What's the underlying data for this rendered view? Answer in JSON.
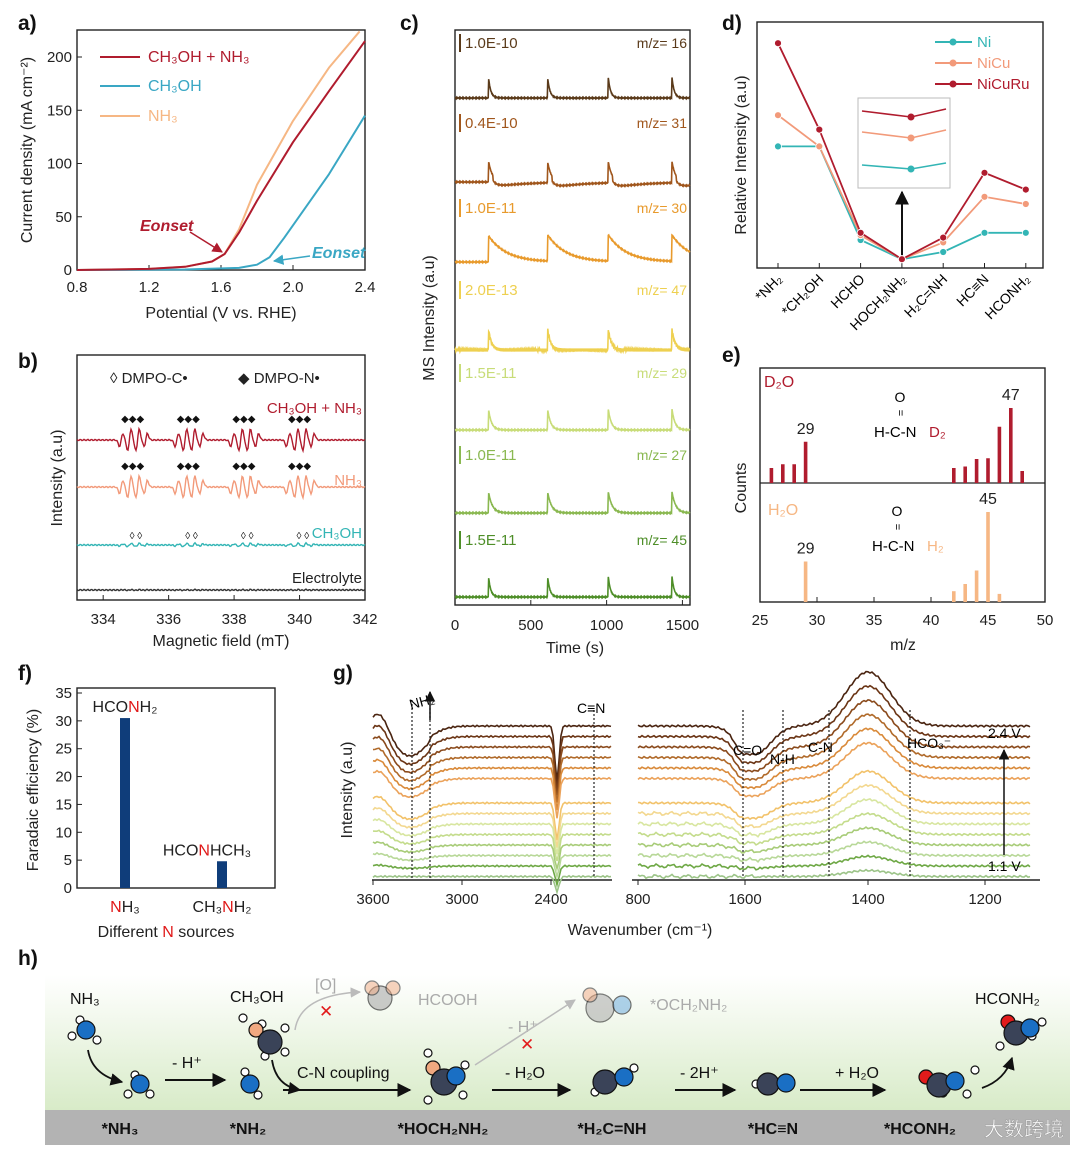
{
  "panel_labels": {
    "a": "a)",
    "b": "b)",
    "c": "c)",
    "d": "d)",
    "e": "e)",
    "f": "f)",
    "g": "g)",
    "h": "h)"
  },
  "colors": {
    "red": "#b01c2e",
    "blue": "#3aa7c4",
    "orange": "#f6b784",
    "salmon": "#f29a7a",
    "teal": "#33b5b5",
    "navy": "#0f3d7a",
    "green": "#5b9a2e"
  },
  "chart_data": [
    {
      "id": "a",
      "type": "line",
      "xlabel": "Potential (V vs. RHE)",
      "ylabel": "Current density (mA cm⁻²)",
      "xlim": [
        0.8,
        2.4
      ],
      "ylim": [
        0,
        225
      ],
      "xticks": [
        "0.8",
        "1.2",
        "1.6",
        "2.0",
        "2.4"
      ],
      "yticks": [
        "0",
        "50",
        "100",
        "150",
        "200"
      ],
      "legend_position": "top-left",
      "series": [
        {
          "name": "CH₃OH + NH₃",
          "color": "#b01c2e",
          "points": [
            [
              0.8,
              0
            ],
            [
              1.2,
              1
            ],
            [
              1.4,
              3
            ],
            [
              1.55,
              8
            ],
            [
              1.62,
              15
            ],
            [
              1.7,
              35
            ],
            [
              1.8,
              65
            ],
            [
              2.0,
              120
            ],
            [
              2.2,
              168
            ],
            [
              2.4,
              215
            ]
          ]
        },
        {
          "name": "CH₃OH",
          "color": "#3aa7c4",
          "points": [
            [
              0.8,
              0
            ],
            [
              1.4,
              0.5
            ],
            [
              1.7,
              2
            ],
            [
              1.8,
              5
            ],
            [
              1.87,
              12
            ],
            [
              1.95,
              30
            ],
            [
              2.0,
              42
            ],
            [
              2.2,
              90
            ],
            [
              2.4,
              145
            ]
          ]
        },
        {
          "name": "NH₃",
          "color": "#f6b784",
          "points": [
            [
              0.8,
              0
            ],
            [
              1.2,
              1
            ],
            [
              1.4,
              3
            ],
            [
              1.55,
              8
            ],
            [
              1.62,
              15
            ],
            [
              1.7,
              38
            ],
            [
              1.8,
              80
            ],
            [
              2.0,
              140
            ],
            [
              2.2,
              190
            ],
            [
              2.37,
              224
            ]
          ]
        }
      ],
      "annotations": [
        "Eonset",
        "Eonset"
      ]
    },
    {
      "id": "b",
      "type": "line",
      "xlabel": "Magnetic field (mT)",
      "ylabel": "Intensity (a.u)",
      "xlim": [
        333.2,
        342
      ],
      "xticks": [
        "334",
        "336",
        "338",
        "340",
        "342"
      ],
      "legend": [
        "◊ DMPO-C•",
        "◆ DMPO-N•"
      ],
      "peak_groups_mT": [
        334.8,
        336.5,
        338.2,
        339.9
      ],
      "series": [
        {
          "name": "CH₃OH + NH₃",
          "color": "#b01c2e",
          "amplitude": 1.0
        },
        {
          "name": "NH₃",
          "color": "#f29a7a",
          "amplitude": 1.0
        },
        {
          "name": "CH₃OH",
          "color": "#33b5b5",
          "amplitude": 0.15
        },
        {
          "name": "Electrolyte",
          "color": "#333333",
          "amplitude": 0.03
        }
      ]
    },
    {
      "id": "c",
      "type": "line",
      "xlabel": "Time (s)",
      "ylabel": "MS Intensity (a.u)",
      "xlim": [
        0,
        1550
      ],
      "xticks": [
        "0",
        "500",
        "1000",
        "1500"
      ],
      "pulse_times_s": [
        220,
        610,
        1010,
        1430
      ],
      "series": [
        {
          "scale": "1.0E-10",
          "mz": "m/z= 16",
          "color": "#5a3a1a",
          "decay": 15
        },
        {
          "scale": "0.4E-10",
          "mz": "m/z= 31",
          "color": "#a0561c",
          "decay": 25
        },
        {
          "scale": "1.0E-11",
          "mz": "m/z= 30",
          "color": "#e89a2c",
          "decay": 120
        },
        {
          "scale": "2.0E-13",
          "mz": "m/z= 47",
          "color": "#eed050",
          "decay": 20
        },
        {
          "scale": "1.5E-11",
          "mz": "m/z= 29",
          "color": "#c8dc78",
          "decay": 20
        },
        {
          "scale": "1.0E-11",
          "mz": "m/z= 27",
          "color": "#8ab850",
          "decay": 25
        },
        {
          "scale": "1.5E-11",
          "mz": "m/z= 45",
          "color": "#4e8e28",
          "decay": 15
        }
      ]
    },
    {
      "id": "d",
      "type": "line",
      "ylabel": "Relative Intensity (a.u)",
      "categories": [
        "*NH₂",
        "*CH₂OH",
        "HCHO",
        "HOCH₂NH₂",
        "H₂C=NH",
        "HC≡N",
        "HCONH₂"
      ],
      "ylim": [
        0,
        1
      ],
      "legend_position": "top-right",
      "series": [
        {
          "name": "Ni",
          "color": "#33b5b5",
          "values": [
            0.49,
            0.49,
            0.1,
            0.02,
            0.05,
            0.13,
            0.13
          ]
        },
        {
          "name": "NiCu",
          "color": "#f29a7a",
          "values": [
            0.62,
            0.49,
            0.12,
            0.02,
            0.09,
            0.28,
            0.25
          ]
        },
        {
          "name": "NiCuRu",
          "color": "#b01c2e",
          "values": [
            0.92,
            0.56,
            0.13,
            0.02,
            0.11,
            0.38,
            0.31
          ]
        }
      ]
    },
    {
      "id": "e",
      "type": "bar",
      "xlabel": "m/z",
      "ylabel": "Counts",
      "xlim": [
        25,
        50
      ],
      "xticks": [
        "25",
        "30",
        "35",
        "40",
        "45",
        "50"
      ],
      "series": [
        {
          "name": "D₂O",
          "color": "#b01c2e",
          "structure_top": "O",
          "structure_bond": "=",
          "structure_main": "H-C-N",
          "structure_sub": "D₂",
          "x": [
            26,
            27,
            28,
            29,
            42,
            43,
            44,
            45,
            46,
            47,
            48
          ],
          "values": [
            0.2,
            0.25,
            0.25,
            0.55,
            0.2,
            0.22,
            0.32,
            0.33,
            0.75,
            1.0,
            0.16
          ],
          "labels": {
            "29": "29",
            "47": "47"
          }
        },
        {
          "name": "H₂O",
          "color": "#f6b784",
          "structure_top": "O",
          "structure_bond": "=",
          "structure_main": "H-C-N",
          "structure_sub": "H₂",
          "x": [
            29,
            42,
            43,
            44,
            45,
            46
          ],
          "values": [
            0.45,
            0.12,
            0.2,
            0.35,
            1.0,
            0.09
          ],
          "labels": {
            "29": "29",
            "45": "45"
          }
        }
      ]
    },
    {
      "id": "f",
      "type": "bar",
      "xlabel_parts": [
        "Different ",
        "N",
        " sources"
      ],
      "ylabel": "Faradaic efficiency (%)",
      "ylim": [
        0,
        35
      ],
      "yticks": [
        "0",
        "5",
        "10",
        "15",
        "20",
        "25",
        "30",
        "35"
      ],
      "categories": [
        {
          "pre": "",
          "n": "N",
          "post": "H₃",
          "product_pre": "HCO",
          "product_n": "N",
          "product_post": "H₂"
        },
        {
          "pre": "CH₃",
          "n": "N",
          "post": "H₂",
          "product_pre": "HCO",
          "product_n": "N",
          "product_post": "HCH₃"
        }
      ],
      "values": [
        30.5,
        4.8
      ],
      "color": "#0f3d7a"
    },
    {
      "id": "g",
      "type": "line",
      "xlabel": "Wavenumber (cm⁻¹)",
      "ylabel": "Intensity (a.u)",
      "xticks_left": [
        "3600",
        "3000",
        "2400"
      ],
      "xticks_right": [
        "800",
        "1600",
        "1400",
        "1200"
      ],
      "band_labels": [
        "NH₂",
        "C≡N",
        "C=O",
        "N-H",
        "C-N",
        "HCO₃⁻"
      ],
      "potential_labels": [
        "2.4 V",
        "1.1 V"
      ],
      "trace_count": 14,
      "potential_range_V": [
        1.1,
        2.4
      ]
    }
  ],
  "scheme_h": {
    "top_labels": {
      "nh3": "NH₃",
      "ch3oh": "CH₃OH",
      "o": "[O]",
      "hcooh": "HCOOH",
      "minus_h": "- H⁺",
      "och2nh2": "*OCH₂NH₂",
      "product": "HCONH₂"
    },
    "steps": [
      "- H⁺",
      "C-N coupling",
      "- H₂O",
      "- 2H⁺",
      "+ H₂O"
    ],
    "intermediates": [
      "*NH₃",
      "*NH₂",
      "*HOCH₂NH₂",
      "*H₂C=NH",
      "*HC≡N",
      "*HCONH₂"
    ],
    "blocked_mark": "✕"
  },
  "watermark": "大数跨境"
}
